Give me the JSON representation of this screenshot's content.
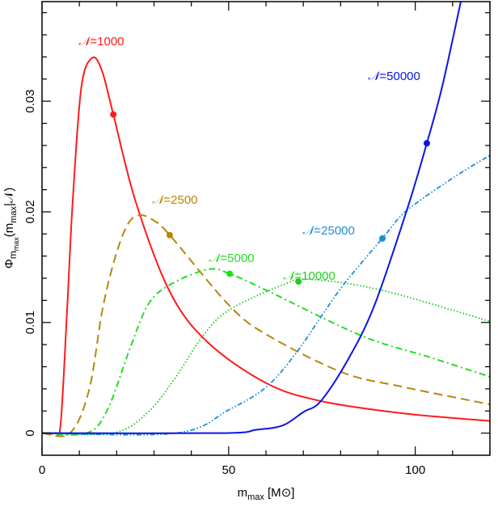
{
  "chart_data": {
    "type": "line",
    "title": "",
    "xlabel": {
      "main": "m",
      "sub": "max",
      "unit_open": " [M",
      "unit_sym": "⊙",
      "unit_close": "]"
    },
    "ylabel": {
      "main": "Φ",
      "sub": "m",
      "subsub": "max",
      "paren_open": "(m",
      "paren_sub": "max",
      "paren_close": "|𝒩)"
    },
    "xlim": [
      0,
      120
    ],
    "ylim": [
      -0.002,
      0.039
    ],
    "x_major_ticks": [
      0,
      50,
      100
    ],
    "x_tick_labels": [
      "0",
      "50",
      "100"
    ],
    "x_minor_step": 10,
    "y_major_ticks": [
      0,
      0.01,
      0.02,
      0.03
    ],
    "y_tick_labels": [
      "0",
      "0.01",
      "0.02",
      "0.03"
    ],
    "y_minor_step": 0.002,
    "grid": false,
    "series": [
      {
        "name": "𝒩=1000",
        "label_prefix": "𝒩",
        "label_value": "=1000",
        "color": "#ff1a1a",
        "style": "solid",
        "x": [
          0,
          3.5,
          5,
          6.7,
          8.2,
          10.5,
          13.4,
          16,
          19.1,
          25.1,
          34.2,
          44.4,
          60.2,
          74.7,
          96.4,
          120
        ],
        "y": [
          0,
          0,
          0.0009,
          0.011,
          0.0209,
          0.0312,
          0.0339,
          0.0328,
          0.0288,
          0.0209,
          0.0128,
          0.0082,
          0.0045,
          0.0029,
          0.0018,
          0.0011
        ],
        "marker": [
          19.1,
          0.0288
        ]
      },
      {
        "name": "𝒩=2500",
        "label_prefix": "𝒩",
        "label_value": "=2500",
        "color": "#b8860b",
        "style": "dashed",
        "x": [
          0,
          7.5,
          12.6,
          16.2,
          19.7,
          23,
          26.2,
          30,
          34.2,
          50,
          60.2,
          80.4,
          96.4,
          117,
          120
        ],
        "y": [
          0,
          0,
          0.0039,
          0.0112,
          0.016,
          0.0189,
          0.0197,
          0.0192,
          0.0179,
          0.0116,
          0.0089,
          0.0055,
          0.0042,
          0.0028,
          0.0026
        ],
        "marker": [
          34.2,
          0.0179
        ]
      },
      {
        "name": "𝒩=5000",
        "label_prefix": "𝒩",
        "label_value": "=5000",
        "color": "#22dd22",
        "style": "dash-dot",
        "x": [
          0,
          12,
          17.5,
          23.4,
          28.4,
          34.2,
          44.4,
          50.3,
          60.2,
          85.6,
          103.5,
          120
        ],
        "y": [
          0,
          0,
          0.0021,
          0.0075,
          0.0116,
          0.0134,
          0.0148,
          0.0144,
          0.0129,
          0.0088,
          0.0069,
          0.0051
        ],
        "marker": [
          50.3,
          0.0144
        ]
      },
      {
        "name": "𝒩=10000",
        "label_prefix": "𝒩",
        "label_value": "=10000",
        "color": "#22cc22",
        "style": "dotted",
        "x": [
          0,
          19,
          28.4,
          35.7,
          42.9,
          50,
          64.5,
          71.7,
          91.2,
          120
        ],
        "y": [
          0,
          0,
          0.0019,
          0.005,
          0.0087,
          0.0111,
          0.0134,
          0.0139,
          0.0129,
          0.0101
        ],
        "marker": [
          68.7,
          0.0137
        ]
      },
      {
        "name": "𝒩=25000",
        "label_prefix": "𝒩",
        "label_value": "=25000",
        "color": "#1a8fd6",
        "style": "dash-dot-dot",
        "x": [
          0,
          36,
          50,
          60.2,
          68.2,
          74.7,
          81.2,
          91.2,
          97.7,
          110.7,
          120
        ],
        "y": [
          0,
          0,
          0.0021,
          0.0042,
          0.0073,
          0.0105,
          0.0136,
          0.0176,
          0.0201,
          0.0232,
          0.0251
        ],
        "marker": [
          91.2,
          0.0176
        ]
      },
      {
        "name": "𝒩=50000",
        "label_prefix": "𝒩",
        "label_value": "=50000",
        "color": "#0a14e6",
        "style": "solid",
        "x": [
          0,
          48,
          57.4,
          64.5,
          70,
          74.7,
          81.9,
          89,
          97.7,
          103.1,
          107.2,
          112.2
        ],
        "y": [
          0,
          0,
          0.0003,
          0.0007,
          0.0019,
          0.0029,
          0.0066,
          0.0115,
          0.0201,
          0.0262,
          0.0313,
          0.039
        ],
        "marker": [
          103.1,
          0.0262
        ]
      }
    ]
  }
}
